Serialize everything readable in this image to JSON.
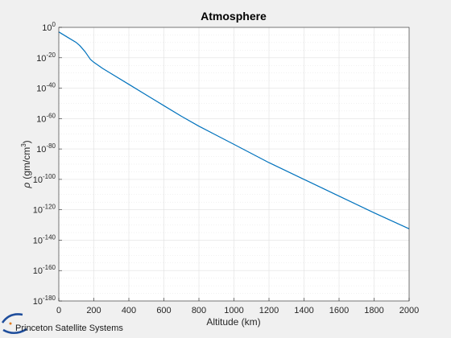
{
  "chart_data": {
    "type": "line",
    "title": "Atmosphere",
    "xlabel": "Altitude (km)",
    "ylabel_symbol": "ρ",
    "ylabel_text": "(gm/cm",
    "ylabel_exp": "3",
    "ylabel_close": ")",
    "xlim": [
      0,
      2000
    ],
    "ylim_log10": [
      -180,
      0
    ],
    "yscale": "log",
    "grid": true,
    "minor_grid": true,
    "x_ticks": [
      "0",
      "200",
      "400",
      "600",
      "800",
      "1000",
      "1200",
      "1400",
      "1600",
      "1800",
      "2000"
    ],
    "y_tick_base": "10",
    "y_tick_exponents": [
      "0",
      "-20",
      "-40",
      "-60",
      "-80",
      "-100",
      "-120",
      "-140",
      "-160",
      "-180"
    ],
    "series": [
      {
        "color": "#0072bd",
        "x": [
          0,
          50,
          100,
          120,
          150,
          180,
          200,
          250,
          300,
          400,
          500,
          600,
          700,
          800,
          900,
          1000,
          1200,
          1400,
          1600,
          1800,
          2000
        ],
        "log10_y": [
          -3,
          -6.5,
          -10,
          -12,
          -16,
          -21,
          -23,
          -27,
          -30.5,
          -37.5,
          -44.5,
          -51.5,
          -58.5,
          -65,
          -71,
          -77,
          -89,
          -100,
          -111,
          -122,
          -132.5
        ]
      }
    ]
  },
  "logo": {
    "text": "Princeton Satellite Systems",
    "color": "#1f4e9c"
  }
}
